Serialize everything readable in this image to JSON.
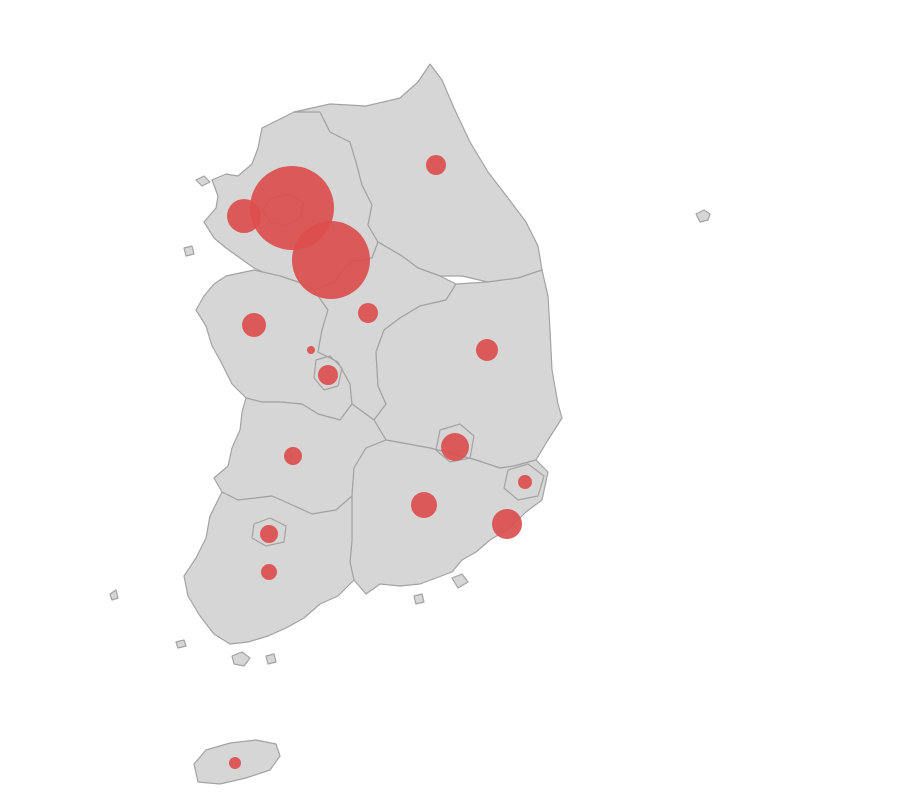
{
  "map": {
    "land_color": "#d6d6d6",
    "border_color": "#a3a3a3",
    "bubble_color": "#dc4e4e",
    "bubble_opacity": 0.92
  },
  "regions": [
    {
      "id": "gyeonggi"
    },
    {
      "id": "gangwon"
    },
    {
      "id": "chungnam"
    },
    {
      "id": "chungbuk"
    },
    {
      "id": "gyeongbuk"
    },
    {
      "id": "jeonbuk"
    },
    {
      "id": "gyeongnam"
    },
    {
      "id": "jeonnam"
    },
    {
      "id": "jeju"
    }
  ],
  "bubbles": [
    {
      "id": "seoul"
    },
    {
      "id": "gyeonggi"
    },
    {
      "id": "incheon"
    },
    {
      "id": "gangwon"
    },
    {
      "id": "chungbuk"
    },
    {
      "id": "chungnam"
    },
    {
      "id": "sejong"
    },
    {
      "id": "daejeon"
    },
    {
      "id": "gyeongbuk"
    },
    {
      "id": "daegu"
    },
    {
      "id": "jeonbuk"
    },
    {
      "id": "ulsan"
    },
    {
      "id": "gyeongnam"
    },
    {
      "id": "busan"
    },
    {
      "id": "gwangju"
    },
    {
      "id": "jeonnam"
    },
    {
      "id": "jeju"
    }
  ]
}
